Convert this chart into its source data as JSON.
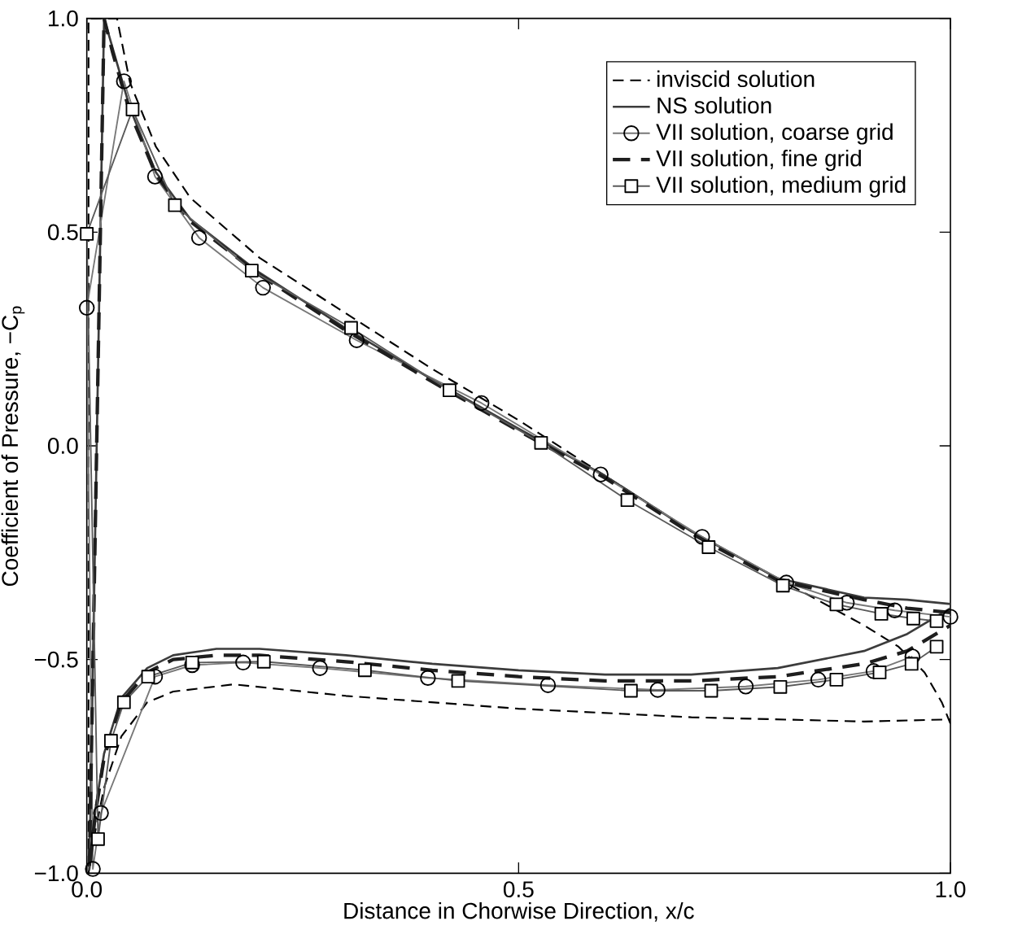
{
  "chart_data": {
    "type": "line",
    "xlabel": "Distance in Chorwise Direction, x/c",
    "ylabel": "Coefficient of Pressure, −C$_{p}$",
    "xlim": [
      0,
      1
    ],
    "ylim": [
      -1,
      1
    ],
    "xticks": [
      {
        "value": 0,
        "label": "0.0"
      },
      {
        "value": 0.5,
        "label": "0.5"
      },
      {
        "value": 1,
        "label": "1.0"
      }
    ],
    "yticks": [
      {
        "value": -1,
        "label": "−1.0"
      },
      {
        "value": -0.5,
        "label": "−0.5"
      },
      {
        "value": 0,
        "label": "0.0"
      },
      {
        "value": 0.5,
        "label": "0.5"
      },
      {
        "value": 1,
        "label": "1.0"
      }
    ],
    "grid": false,
    "legend": "top right",
    "series": [
      {
        "name": "inviscid solution",
        "color": "#000000",
        "line_style": "dashed",
        "marker": "none",
        "x": [
          1.0,
          0.99,
          0.97,
          0.94,
          0.9,
          0.8,
          0.7,
          0.6,
          0.5,
          0.4,
          0.3,
          0.2,
          0.12,
          0.08,
          0.05,
          0.035,
          0.002,
          0.002,
          0.01,
          0.02,
          0.04,
          0.07,
          0.1,
          0.17,
          0.3,
          0.5,
          0.7,
          0.9,
          1.0
        ],
        "values": [
          -0.65,
          -0.6,
          -0.53,
          -0.47,
          -0.42,
          -0.31,
          -0.2,
          -0.07,
          0.06,
          0.18,
          0.31,
          0.44,
          0.58,
          0.7,
          0.85,
          1.0,
          1.0,
          -1.0,
          -0.9,
          -0.8,
          -0.68,
          -0.6,
          -0.575,
          -0.558,
          -0.585,
          -0.615,
          -0.635,
          -0.645,
          -0.64
        ]
      },
      {
        "name": "NS solution",
        "color": "#3c3c3c",
        "line_style": "solid",
        "marker": "none",
        "x": [
          1.0,
          0.95,
          0.9,
          0.8,
          0.7,
          0.6,
          0.5,
          0.4,
          0.3,
          0.2,
          0.12,
          0.08,
          0.05,
          0.03,
          0.02,
          0.003,
          0.01,
          0.02,
          0.04,
          0.07,
          0.1,
          0.15,
          0.2,
          0.3,
          0.4,
          0.5,
          0.6,
          0.7,
          0.8,
          0.9,
          0.95,
          1.0
        ],
        "values": [
          -0.37,
          -0.36,
          -0.355,
          -0.31,
          -0.2,
          -0.07,
          0.04,
          0.155,
          0.275,
          0.405,
          0.53,
          0.64,
          0.79,
          0.93,
          1.0,
          -0.99,
          -0.85,
          -0.72,
          -0.59,
          -0.52,
          -0.49,
          -0.475,
          -0.475,
          -0.49,
          -0.51,
          -0.525,
          -0.535,
          -0.535,
          -0.52,
          -0.48,
          -0.44,
          -0.38
        ]
      },
      {
        "name": "VII solution, coarse grid",
        "color": "#787878",
        "line_style": "solid",
        "marker": "circle",
        "x": [
          1.0,
          0.9355,
          0.88,
          0.81,
          0.7125,
          0.595,
          0.457,
          0.3125,
          0.204,
          0.13,
          0.079,
          0.043,
          0,
          0.007,
          0.0164,
          0.079,
          0.122,
          0.181,
          0.27,
          0.395,
          0.534,
          0.661,
          0.763,
          0.847,
          0.911,
          0.956
        ],
        "values": [
          -0.4,
          -0.385,
          -0.367,
          -0.32,
          -0.213,
          -0.067,
          0.1,
          0.247,
          0.37,
          0.487,
          0.63,
          0.853,
          0.323,
          -0.99,
          -0.859,
          -0.54,
          -0.513,
          -0.507,
          -0.52,
          -0.543,
          -0.56,
          -0.571,
          -0.563,
          -0.547,
          -0.527,
          -0.493
        ]
      },
      {
        "name": "VII solution, fine grid",
        "color": "#1e1e1e",
        "line_style": "dashed",
        "marker": "none",
        "x": [
          1.0,
          0.95,
          0.9,
          0.8,
          0.7,
          0.6,
          0.5,
          0.4,
          0.3,
          0.2,
          0.12,
          0.08,
          0.05,
          0.03,
          0.02,
          0.003,
          0.01,
          0.02,
          0.04,
          0.07,
          0.1,
          0.15,
          0.2,
          0.3,
          0.4,
          0.5,
          0.6,
          0.7,
          0.8,
          0.9,
          0.95,
          1.0
        ],
        "values": [
          -0.39,
          -0.38,
          -0.36,
          -0.315,
          -0.205,
          -0.075,
          0.035,
          0.15,
          0.27,
          0.4,
          0.525,
          0.635,
          0.78,
          0.92,
          1.0,
          -0.99,
          -0.86,
          -0.73,
          -0.6,
          -0.53,
          -0.5,
          -0.49,
          -0.49,
          -0.505,
          -0.525,
          -0.54,
          -0.55,
          -0.55,
          -0.54,
          -0.51,
          -0.48,
          -0.42
        ]
      },
      {
        "name": "VII solution, medium grid",
        "color": "#5a5a5a",
        "line_style": "solid",
        "marker": "square",
        "x": [
          0.984,
          0.957,
          0.92,
          0.868,
          0.806,
          0.72,
          0.626,
          0.526,
          0.42,
          0.306,
          0.191,
          0.102,
          0.053,
          0,
          0.013,
          0.028,
          0.043,
          0.071,
          0.122,
          0.205,
          0.322,
          0.43,
          0.63,
          0.723,
          0.803,
          0.868,
          0.918,
          0.955,
          0.984
        ],
        "values": [
          -0.41,
          -0.404,
          -0.393,
          -0.371,
          -0.327,
          -0.237,
          -0.127,
          0.007,
          0.13,
          0.276,
          0.41,
          0.563,
          0.787,
          0.496,
          -0.92,
          -0.69,
          -0.6,
          -0.54,
          -0.507,
          -0.505,
          -0.525,
          -0.55,
          -0.573,
          -0.573,
          -0.564,
          -0.547,
          -0.53,
          -0.51,
          -0.47
        ]
      }
    ]
  }
}
